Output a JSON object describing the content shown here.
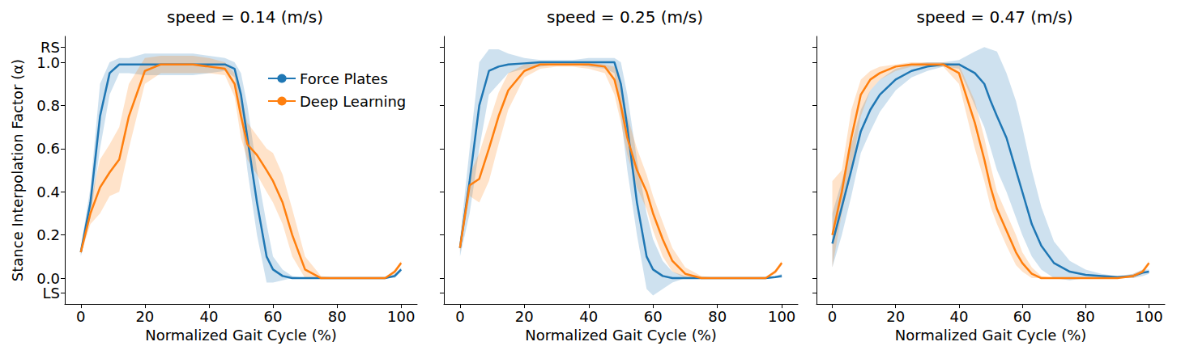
{
  "chart_data": [
    {
      "type": "line",
      "title": "speed = 0.14 (m/s)",
      "x_label": "Normalized Gait Cycle (%)",
      "y_label": "Stance Interpolation Factor (α)",
      "xlim": [
        -5,
        105
      ],
      "xticks": [
        0,
        20,
        40,
        60,
        80,
        100
      ],
      "ylim": [
        -0.12,
        1.12
      ],
      "yticks": [
        {
          "value": -0.07,
          "label": "LS"
        },
        {
          "value": 0,
          "label": "0.0"
        },
        {
          "value": 0.2,
          "label": "0.2"
        },
        {
          "value": 0.4,
          "label": "0.4"
        },
        {
          "value": 0.6,
          "label": "0.6"
        },
        {
          "value": 0.8,
          "label": "0.8"
        },
        {
          "value": 1,
          "label": "1.0"
        },
        {
          "value": 1.07,
          "label": "RS"
        }
      ],
      "grid": false,
      "legend": "upper right",
      "x": [
        0,
        3,
        6,
        9,
        12,
        15,
        20,
        25,
        30,
        35,
        40,
        45,
        48,
        50,
        52,
        55,
        58,
        60,
        63,
        66,
        70,
        75,
        80,
        85,
        90,
        95,
        98,
        100
      ],
      "series": [
        {
          "name": "Force Plates",
          "color": "#1f77b4",
          "values": [
            0.12,
            0.35,
            0.75,
            0.95,
            0.99,
            0.99,
            0.99,
            0.99,
            0.99,
            0.99,
            0.99,
            0.99,
            0.97,
            0.85,
            0.65,
            0.35,
            0.1,
            0.04,
            0.01,
            0,
            0,
            0,
            0,
            0,
            0,
            0,
            0.01,
            0.04
          ],
          "lower": [
            0.1,
            0.28,
            0.6,
            0.85,
            0.95,
            0.95,
            0.94,
            0.94,
            0.94,
            0.94,
            0.95,
            0.96,
            0.93,
            0.75,
            0.5,
            0.2,
            -0.02,
            -0.02,
            -0.01,
            0,
            0,
            0,
            0,
            0,
            0,
            0,
            0,
            0.03
          ],
          "upper": [
            0.14,
            0.42,
            0.9,
            1.0,
            1.02,
            1.02,
            1.04,
            1.04,
            1.04,
            1.04,
            1.03,
            1.02,
            1.0,
            0.95,
            0.8,
            0.5,
            0.25,
            0.1,
            0.04,
            0.01,
            0,
            0,
            0,
            0,
            0,
            0,
            0.02,
            0.05
          ]
        },
        {
          "name": "Deep Learning",
          "color": "#ff7f0e",
          "values": [
            0.12,
            0.3,
            0.42,
            0.49,
            0.55,
            0.75,
            0.96,
            0.99,
            0.99,
            0.99,
            0.98,
            0.97,
            0.9,
            0.75,
            0.62,
            0.57,
            0.5,
            0.45,
            0.35,
            0.2,
            0.04,
            0,
            0,
            0,
            0,
            0,
            0.03,
            0.07
          ],
          "lower": [
            0.11,
            0.25,
            0.3,
            0.38,
            0.4,
            0.6,
            0.9,
            0.95,
            0.95,
            0.95,
            0.95,
            0.94,
            0.84,
            0.65,
            0.55,
            0.48,
            0.4,
            0.35,
            0.25,
            0.1,
            0,
            0,
            0,
            0,
            0,
            0,
            0.02,
            0.06
          ],
          "upper": [
            0.13,
            0.35,
            0.55,
            0.62,
            0.7,
            0.9,
            1.02,
            1.03,
            1.03,
            1.03,
            1.02,
            1.0,
            0.95,
            0.85,
            0.72,
            0.66,
            0.6,
            0.58,
            0.48,
            0.32,
            0.1,
            0.01,
            0,
            0,
            0,
            0,
            0.04,
            0.08
          ]
        }
      ]
    },
    {
      "type": "line",
      "title": "speed = 0.25 (m/s)",
      "x_label": "Normalized Gait Cycle (%)",
      "xlim": [
        -5,
        105
      ],
      "xticks": [
        0,
        20,
        40,
        60,
        80,
        100
      ],
      "ylim": [
        -0.12,
        1.12
      ],
      "yticks": [
        -0.07,
        0,
        0.2,
        0.4,
        0.6,
        0.8,
        1,
        1.07
      ],
      "grid": false,
      "tick_labels": "x",
      "x": [
        0,
        3,
        6,
        9,
        12,
        15,
        20,
        25,
        30,
        35,
        40,
        45,
        48,
        50,
        52,
        55,
        58,
        60,
        63,
        66,
        70,
        75,
        80,
        85,
        90,
        95,
        98,
        100
      ],
      "series": [
        {
          "name": "Force Plates",
          "color": "#1f77b4",
          "values": [
            0.14,
            0.45,
            0.8,
            0.96,
            0.98,
            0.99,
            0.995,
            1.0,
            1.0,
            1.0,
            1.0,
            1.0,
            1.0,
            0.9,
            0.7,
            0.35,
            0.1,
            0.04,
            0.01,
            0,
            0,
            0,
            0,
            0,
            0,
            0,
            0.005,
            0.01
          ],
          "lower": [
            0.1,
            0.3,
            0.6,
            0.85,
            0.9,
            0.95,
            0.97,
            0.98,
            0.99,
            0.99,
            0.98,
            0.97,
            0.95,
            0.75,
            0.5,
            0.2,
            -0.05,
            -0.08,
            -0.05,
            -0.02,
            0,
            0,
            0,
            0,
            0,
            0,
            0,
            0
          ],
          "upper": [
            0.18,
            0.6,
            1.0,
            1.06,
            1.06,
            1.04,
            1.02,
            1.01,
            1.01,
            1.01,
            1.02,
            1.02,
            1.02,
            1.0,
            0.85,
            0.55,
            0.3,
            0.18,
            0.08,
            0.03,
            0.01,
            0,
            0,
            0,
            0,
            0,
            0.01,
            0.02
          ]
        },
        {
          "name": "Deep Learning",
          "color": "#ff7f0e",
          "values": [
            0.14,
            0.43,
            0.46,
            0.6,
            0.75,
            0.87,
            0.96,
            0.99,
            0.99,
            0.99,
            0.99,
            0.98,
            0.92,
            0.8,
            0.65,
            0.5,
            0.4,
            0.3,
            0.18,
            0.08,
            0.02,
            0,
            0,
            0,
            0,
            0,
            0.03,
            0.07
          ],
          "lower": [
            0.12,
            0.38,
            0.35,
            0.45,
            0.62,
            0.78,
            0.93,
            0.97,
            0.98,
            0.98,
            0.97,
            0.95,
            0.85,
            0.72,
            0.57,
            0.42,
            0.32,
            0.22,
            0.1,
            0.03,
            0,
            0,
            0,
            0,
            0,
            0,
            0.02,
            0.06
          ],
          "upper": [
            0.16,
            0.48,
            0.58,
            0.72,
            0.86,
            0.95,
            0.99,
            1.0,
            1.0,
            1.0,
            1.0,
            0.99,
            0.98,
            0.9,
            0.75,
            0.6,
            0.48,
            0.38,
            0.26,
            0.14,
            0.05,
            0.01,
            0,
            0,
            0,
            0,
            0.04,
            0.08
          ]
        }
      ]
    },
    {
      "type": "line",
      "title": "speed = 0.47 (m/s)",
      "x_label": "Normalized Gait Cycle (%)",
      "xlim": [
        -5,
        105
      ],
      "xticks": [
        0,
        20,
        40,
        60,
        80,
        100
      ],
      "ylim": [
        -0.12,
        1.12
      ],
      "yticks": [
        -0.07,
        0,
        0.2,
        0.4,
        0.6,
        0.8,
        1,
        1.07
      ],
      "grid": false,
      "tick_labels": "x",
      "x": [
        0,
        3,
        6,
        9,
        12,
        15,
        20,
        25,
        30,
        35,
        40,
        45,
        48,
        50,
        52,
        55,
        58,
        60,
        63,
        66,
        70,
        75,
        80,
        85,
        90,
        95,
        98,
        100
      ],
      "series": [
        {
          "name": "Force Plates",
          "color": "#1f77b4",
          "values": [
            0.16,
            0.33,
            0.5,
            0.68,
            0.78,
            0.85,
            0.92,
            0.96,
            0.98,
            0.99,
            0.99,
            0.95,
            0.9,
            0.82,
            0.75,
            0.65,
            0.5,
            0.4,
            0.25,
            0.15,
            0.07,
            0.03,
            0.015,
            0.01,
            0.005,
            0.01,
            0.025,
            0.03
          ],
          "lower": [
            0.05,
            0.2,
            0.38,
            0.58,
            0.68,
            0.77,
            0.87,
            0.93,
            0.96,
            0.98,
            0.97,
            0.8,
            0.7,
            0.6,
            0.5,
            0.4,
            0.28,
            0.2,
            0.1,
            0.04,
            0,
            -0.01,
            0,
            0,
            0,
            0,
            0.01,
            0.02
          ],
          "upper": [
            0.3,
            0.45,
            0.62,
            0.78,
            0.87,
            0.92,
            0.97,
            0.99,
            1.0,
            1.0,
            1.01,
            1.05,
            1.07,
            1.06,
            1.05,
            0.95,
            0.82,
            0.7,
            0.5,
            0.33,
            0.17,
            0.08,
            0.04,
            0.02,
            0.01,
            0.02,
            0.04,
            0.04
          ]
        },
        {
          "name": "Deep Learning",
          "color": "#ff7f0e",
          "values": [
            0.2,
            0.4,
            0.65,
            0.85,
            0.92,
            0.95,
            0.98,
            0.99,
            0.99,
            0.99,
            0.95,
            0.72,
            0.55,
            0.42,
            0.32,
            0.22,
            0.12,
            0.07,
            0.02,
            0,
            0,
            0,
            0,
            0,
            0,
            0.01,
            0.03,
            0.07
          ],
          "lower": [
            0.05,
            0.3,
            0.5,
            0.75,
            0.87,
            0.92,
            0.96,
            0.98,
            0.98,
            0.98,
            0.9,
            0.6,
            0.45,
            0.33,
            0.25,
            0.15,
            0.06,
            0.03,
            0,
            0,
            0,
            0,
            0,
            0,
            0,
            0,
            0.02,
            0.06
          ],
          "upper": [
            0.45,
            0.5,
            0.78,
            0.92,
            0.96,
            0.98,
            0.99,
            1.0,
            1.0,
            1.0,
            0.99,
            0.82,
            0.65,
            0.52,
            0.4,
            0.3,
            0.2,
            0.12,
            0.05,
            0.01,
            0,
            0,
            0,
            0,
            0,
            0.02,
            0.04,
            0.08
          ]
        }
      ]
    }
  ]
}
